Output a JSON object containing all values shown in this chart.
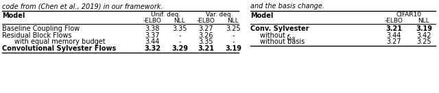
{
  "top_text_left": "code from (Chen et al., 2019) in our framework.",
  "top_text_right": "and the basis change.",
  "table1_rows": [
    [
      "Baseline Coupling Flow",
      "3.38",
      "3.35",
      "3.27",
      "3.25",
      false
    ],
    [
      "Residual Block Flows",
      "3.37",
      "-",
      "3.26",
      "-",
      false
    ],
    [
      "with equal memory budget",
      "3.44",
      "-",
      "3.35",
      "-",
      false
    ],
    [
      "Convolutional Sylvester Flows",
      "3.32",
      "3.29",
      "3.21",
      "3.19",
      true
    ]
  ],
  "table2_rows": [
    [
      "Conv. Sylvester",
      "3.21",
      "3.19",
      true
    ],
    [
      "without fAR",
      "3.44",
      "3.42",
      false
    ],
    [
      "without basis",
      "3.27",
      "3.25",
      false
    ]
  ],
  "bg_color": "#ffffff",
  "text_color": "#000000"
}
